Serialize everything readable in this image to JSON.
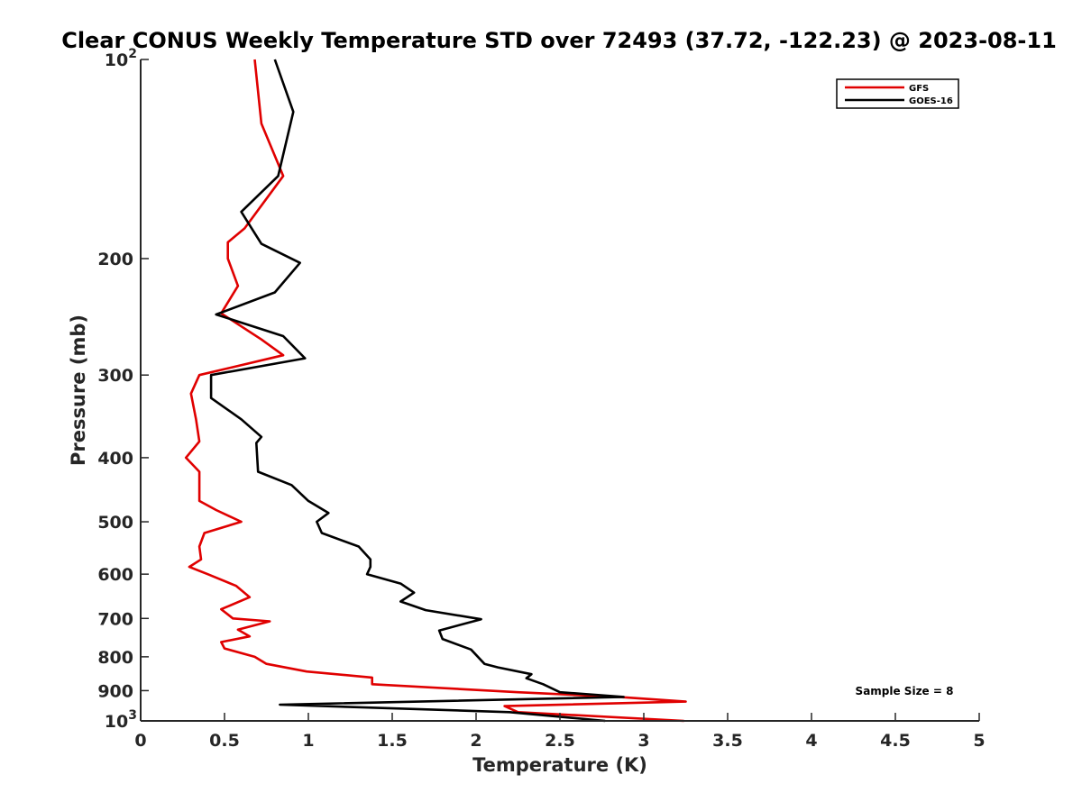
{
  "chart_data": {
    "type": "line",
    "title": "Clear CONUS Weekly Temperature STD over 72493 (37.72, -122.23) @ 2023-08-11",
    "xlabel": "Temperature (K)",
    "ylabel": "Pressure (mb)",
    "xlim": [
      0,
      5
    ],
    "ylim": [
      100,
      1000
    ],
    "y_scale": "log",
    "y_direction": "reversed",
    "x_ticks": [
      "0",
      "0.5",
      "1",
      "1.5",
      "2",
      "2.5",
      "3",
      "3.5",
      "4",
      "4.5",
      "5"
    ],
    "y_ticks": [
      {
        "value": 100,
        "label": "10",
        "exponent": "2"
      },
      {
        "value": 200,
        "label": "200"
      },
      {
        "value": 300,
        "label": "300"
      },
      {
        "value": 400,
        "label": "400"
      },
      {
        "value": 500,
        "label": "500"
      },
      {
        "value": 600,
        "label": "600"
      },
      {
        "value": 700,
        "label": "700"
      },
      {
        "value": 800,
        "label": "800"
      },
      {
        "value": 900,
        "label": "900"
      },
      {
        "value": 1000,
        "label": "10",
        "exponent": "3"
      }
    ],
    "legend_position": "top-right",
    "grid": false,
    "annotation": "Sample Size = 8",
    "series": [
      {
        "name": "GFS",
        "color": "#e00000",
        "points": [
          [
            0.68,
            100
          ],
          [
            0.72,
            125
          ],
          [
            0.85,
            150
          ],
          [
            0.62,
            180
          ],
          [
            0.52,
            189
          ],
          [
            0.52,
            200
          ],
          [
            0.58,
            220
          ],
          [
            0.48,
            242
          ],
          [
            0.72,
            265
          ],
          [
            0.85,
            280
          ],
          [
            0.35,
            300
          ],
          [
            0.3,
            320
          ],
          [
            0.33,
            350
          ],
          [
            0.35,
            378
          ],
          [
            0.27,
            400
          ],
          [
            0.35,
            420
          ],
          [
            0.35,
            465
          ],
          [
            0.45,
            480
          ],
          [
            0.6,
            500
          ],
          [
            0.38,
            520
          ],
          [
            0.35,
            545
          ],
          [
            0.36,
            570
          ],
          [
            0.29,
            585
          ],
          [
            0.4,
            600
          ],
          [
            0.57,
            625
          ],
          [
            0.65,
            650
          ],
          [
            0.48,
            678
          ],
          [
            0.55,
            700
          ],
          [
            0.77,
            707
          ],
          [
            0.58,
            728
          ],
          [
            0.65,
            745
          ],
          [
            0.48,
            760
          ],
          [
            0.5,
            777
          ],
          [
            0.68,
            800
          ],
          [
            0.75,
            820
          ],
          [
            0.99,
            842
          ],
          [
            1.38,
            860
          ],
          [
            1.38,
            880
          ],
          [
            2.25,
            905
          ],
          [
            2.85,
            920
          ],
          [
            3.25,
            935
          ],
          [
            2.17,
            950
          ],
          [
            2.25,
            970
          ],
          [
            3.24,
            1000
          ]
        ]
      },
      {
        "name": "GOES-16",
        "color": "#000000",
        "points": [
          [
            0.8,
            100
          ],
          [
            0.91,
            120
          ],
          [
            0.82,
            150
          ],
          [
            0.6,
            170
          ],
          [
            0.72,
            190
          ],
          [
            0.95,
            203
          ],
          [
            0.8,
            225
          ],
          [
            0.45,
            243
          ],
          [
            0.85,
            262
          ],
          [
            0.98,
            283
          ],
          [
            0.42,
            300
          ],
          [
            0.42,
            325
          ],
          [
            0.6,
            350
          ],
          [
            0.72,
            372
          ],
          [
            0.69,
            380
          ],
          [
            0.7,
            420
          ],
          [
            0.9,
            440
          ],
          [
            1.0,
            465
          ],
          [
            1.12,
            485
          ],
          [
            1.05,
            500
          ],
          [
            1.08,
            520
          ],
          [
            1.3,
            545
          ],
          [
            1.37,
            570
          ],
          [
            1.37,
            585
          ],
          [
            1.35,
            600
          ],
          [
            1.55,
            620
          ],
          [
            1.63,
            640
          ],
          [
            1.55,
            660
          ],
          [
            1.7,
            680
          ],
          [
            2.03,
            702
          ],
          [
            1.78,
            730
          ],
          [
            1.8,
            752
          ],
          [
            1.97,
            780
          ],
          [
            2.05,
            820
          ],
          [
            2.13,
            830
          ],
          [
            2.33,
            850
          ],
          [
            2.3,
            862
          ],
          [
            2.4,
            880
          ],
          [
            2.5,
            905
          ],
          [
            2.88,
            920
          ],
          [
            0.83,
            945
          ],
          [
            2.2,
            970
          ],
          [
            2.77,
            1000
          ]
        ]
      }
    ]
  }
}
